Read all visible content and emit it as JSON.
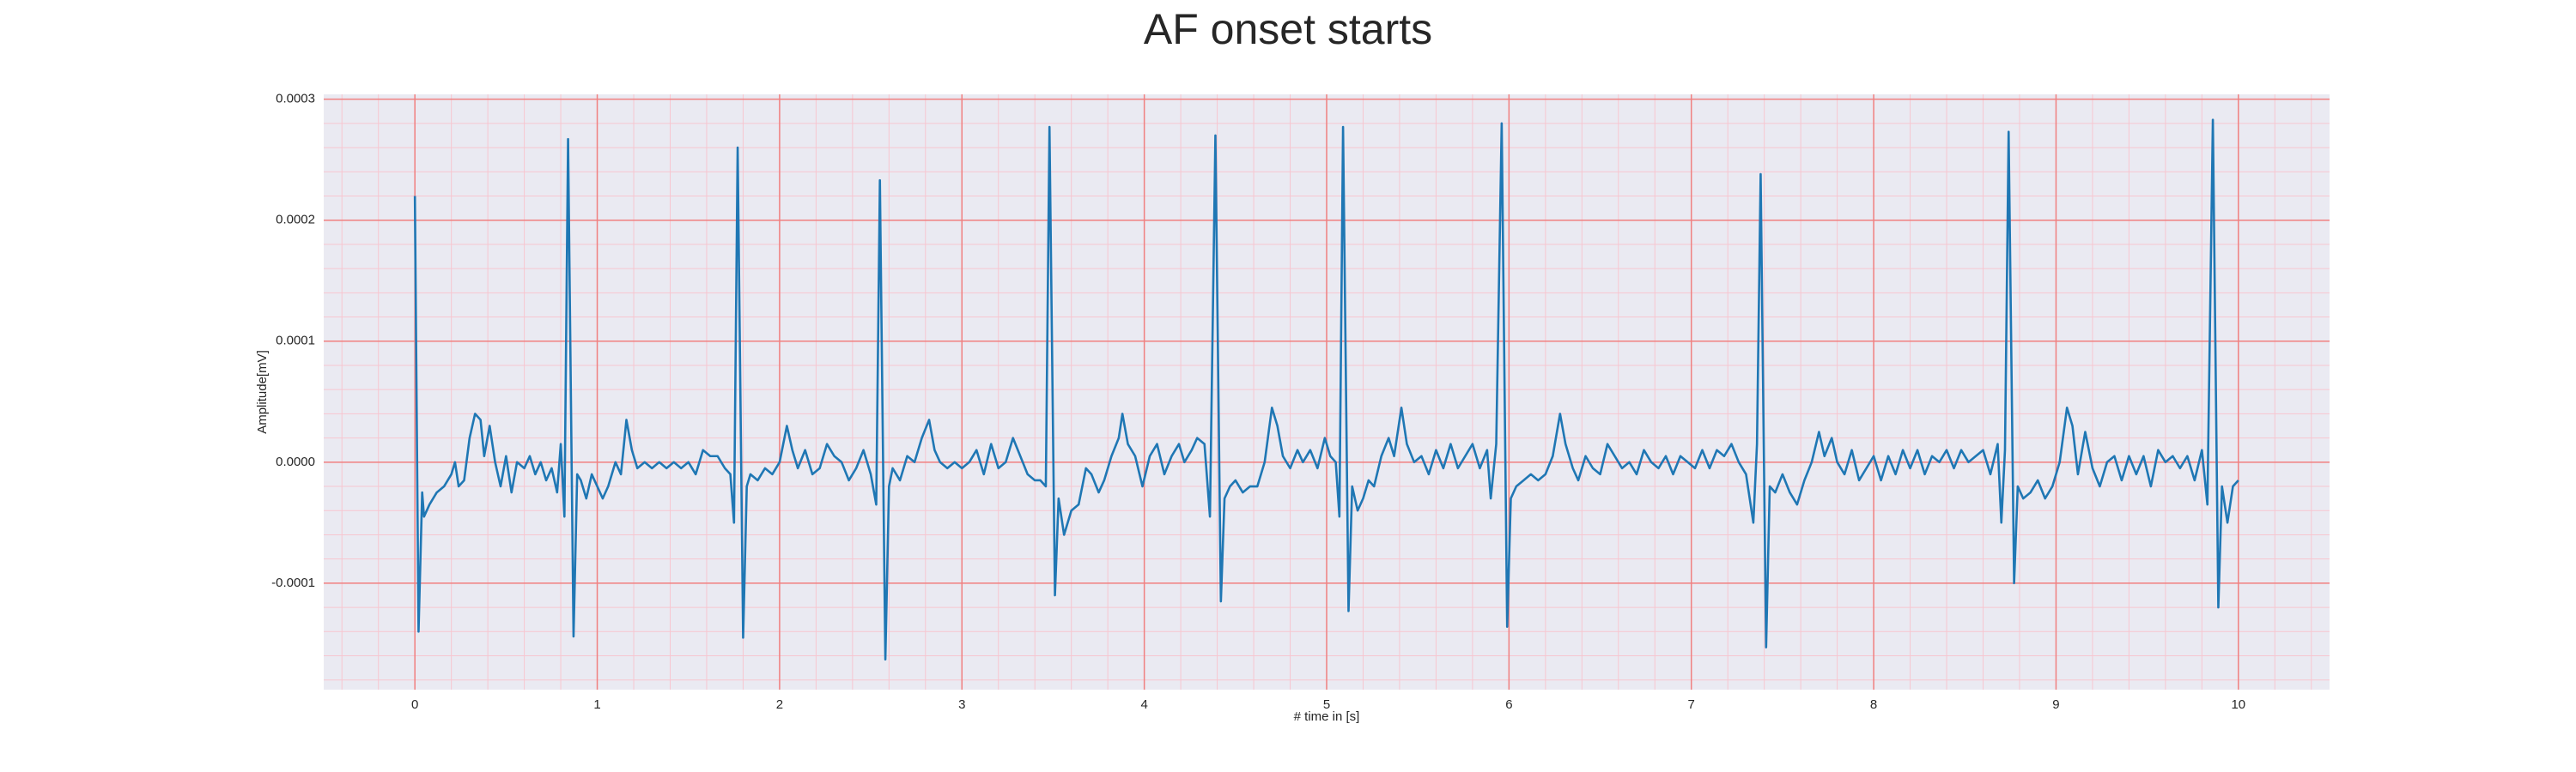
{
  "chart_data": {
    "type": "line",
    "title": "AF onset starts",
    "x_label": "# time in [s]",
    "y_label": "Amplitude[mV]",
    "xlim": [
      -0.5,
      10.5
    ],
    "ylim": [
      -0.000188,
      0.000304
    ],
    "xticks": [
      0,
      1,
      2,
      3,
      4,
      5,
      6,
      7,
      8,
      9,
      10
    ],
    "yticks": [
      -0.0001,
      {
        "value": 0,
        "label": "0.0000"
      },
      0.0001,
      0.0002,
      0.0003
    ],
    "grid": true,
    "minor_grid": true,
    "series": [
      {
        "color": "#1f77b4",
        "x": [
          0,
          0.02,
          0.04,
          0.05,
          0.08,
          0.12,
          0.16,
          0.2,
          0.22,
          0.24,
          0.27,
          0.3,
          0.33,
          0.36,
          0.38,
          0.41,
          0.44,
          0.47,
          0.5,
          0.53,
          0.56,
          0.6,
          0.63,
          0.66,
          0.69,
          0.72,
          0.75,
          0.78,
          0.8,
          0.82,
          0.84,
          0.87,
          0.89,
          0.91,
          0.94,
          0.97,
          1,
          1.03,
          1.06,
          1.1,
          1.13,
          1.16,
          1.19,
          1.22,
          1.26,
          1.3,
          1.34,
          1.38,
          1.42,
          1.46,
          1.5,
          1.54,
          1.58,
          1.62,
          1.66,
          1.7,
          1.73,
          1.75,
          1.77,
          1.8,
          1.82,
          1.84,
          1.88,
          1.92,
          1.96,
          2,
          2.04,
          2.07,
          2.1,
          2.14,
          2.18,
          2.22,
          2.26,
          2.3,
          2.34,
          2.38,
          2.42,
          2.46,
          2.5,
          2.53,
          2.55,
          2.58,
          2.6,
          2.62,
          2.66,
          2.7,
          2.74,
          2.78,
          2.82,
          2.85,
          2.88,
          2.92,
          2.96,
          3,
          3.04,
          3.08,
          3.12,
          3.16,
          3.2,
          3.24,
          3.28,
          3.32,
          3.36,
          3.4,
          3.43,
          3.46,
          3.48,
          3.51,
          3.53,
          3.56,
          3.6,
          3.64,
          3.68,
          3.71,
          3.75,
          3.78,
          3.82,
          3.86,
          3.88,
          3.91,
          3.95,
          3.99,
          4.03,
          4.07,
          4.11,
          4.15,
          4.19,
          4.22,
          4.26,
          4.29,
          4.33,
          4.36,
          4.39,
          4.42,
          4.44,
          4.47,
          4.5,
          4.54,
          4.58,
          4.62,
          4.66,
          4.7,
          4.73,
          4.76,
          4.8,
          4.84,
          4.87,
          4.91,
          4.95,
          4.99,
          5.02,
          5.05,
          5.07,
          5.09,
          5.12,
          5.14,
          5.17,
          5.2,
          5.23,
          5.26,
          5.3,
          5.34,
          5.37,
          5.41,
          5.44,
          5.48,
          5.52,
          5.56,
          5.6,
          5.64,
          5.68,
          5.72,
          5.76,
          5.8,
          5.84,
          5.88,
          5.9,
          5.93,
          5.96,
          5.99,
          6.01,
          6.04,
          6.08,
          6.12,
          6.16,
          6.2,
          6.24,
          6.28,
          6.31,
          6.35,
          6.38,
          6.42,
          6.46,
          6.5,
          6.54,
          6.58,
          6.62,
          6.66,
          6.7,
          6.74,
          6.78,
          6.82,
          6.86,
          6.9,
          6.94,
          6.98,
          7.02,
          7.06,
          7.1,
          7.14,
          7.18,
          7.22,
          7.26,
          7.3,
          7.34,
          7.36,
          7.38,
          7.41,
          7.43,
          7.46,
          7.5,
          7.54,
          7.58,
          7.62,
          7.66,
          7.7,
          7.73,
          7.77,
          7.8,
          7.84,
          7.88,
          7.92,
          7.96,
          8,
          8.04,
          8.08,
          8.12,
          8.16,
          8.2,
          8.24,
          8.28,
          8.32,
          8.36,
          8.4,
          8.44,
          8.48,
          8.52,
          8.56,
          8.6,
          8.64,
          8.68,
          8.7,
          8.72,
          8.74,
          8.77,
          8.79,
          8.82,
          8.86,
          8.9,
          8.94,
          8.98,
          9.02,
          9.06,
          9.09,
          9.12,
          9.16,
          9.2,
          9.24,
          9.28,
          9.32,
          9.36,
          9.4,
          9.44,
          9.48,
          9.52,
          9.56,
          9.6,
          9.64,
          9.68,
          9.72,
          9.76,
          9.8,
          9.83,
          9.86,
          9.89,
          9.91,
          9.94,
          9.97,
          10
        ],
        "values": [
          0.00022,
          -0.00014,
          -2.5e-05,
          -4.5e-05,
          -3.5e-05,
          -2.5e-05,
          -2e-05,
          -1e-05,
          0,
          -2e-05,
          -1.5e-05,
          2e-05,
          4e-05,
          3.5e-05,
          5e-06,
          3e-05,
          0,
          -2e-05,
          5e-06,
          -2.5e-05,
          0,
          -5e-06,
          5e-06,
          -1e-05,
          0,
          -1.5e-05,
          -5e-06,
          -2.5e-05,
          1.5e-05,
          -4.5e-05,
          0.000267,
          -0.000144,
          -1e-05,
          -1.5e-05,
          -3e-05,
          -1e-05,
          -2e-05,
          -3e-05,
          -2e-05,
          0,
          -1e-05,
          3.5e-05,
          1e-05,
          -5e-06,
          0,
          -5e-06,
          0,
          -5e-06,
          0,
          -5e-06,
          0,
          -1e-05,
          1e-05,
          5e-06,
          5e-06,
          -5e-06,
          -1e-05,
          -5e-05,
          0.00026,
          -0.000145,
          -2e-05,
          -1e-05,
          -1.5e-05,
          -5e-06,
          -1e-05,
          0,
          3e-05,
          1e-05,
          -5e-06,
          1e-05,
          -1e-05,
          -5e-06,
          1.5e-05,
          5e-06,
          0,
          -1.5e-05,
          -5e-06,
          1e-05,
          -1e-05,
          -3.5e-05,
          0.000233,
          -0.000163,
          -2e-05,
          -5e-06,
          -1.5e-05,
          5e-06,
          0,
          2e-05,
          3.5e-05,
          1e-05,
          0,
          -5e-06,
          0,
          -5e-06,
          0,
          1e-05,
          -1e-05,
          1.5e-05,
          -5e-06,
          0,
          2e-05,
          5e-06,
          -1e-05,
          -1.5e-05,
          -1.5e-05,
          -2e-05,
          0.000277,
          -0.00011,
          -3e-05,
          -6e-05,
          -4e-05,
          -3.5e-05,
          -5e-06,
          -1e-05,
          -2.5e-05,
          -1.5e-05,
          5e-06,
          2e-05,
          4e-05,
          1.5e-05,
          5e-06,
          -2e-05,
          5e-06,
          1.5e-05,
          -1e-05,
          5e-06,
          1.5e-05,
          0,
          1e-05,
          2e-05,
          1.5e-05,
          -4.5e-05,
          0.00027,
          -0.000115,
          -3e-05,
          -2e-05,
          -1.5e-05,
          -2.5e-05,
          -2e-05,
          -2e-05,
          0,
          4.5e-05,
          3e-05,
          5e-06,
          -5e-06,
          1e-05,
          0,
          1e-05,
          -5e-06,
          2e-05,
          5e-06,
          0,
          -4.5e-05,
          0.000277,
          -0.000123,
          -2e-05,
          -4e-05,
          -3e-05,
          -1.5e-05,
          -2e-05,
          5e-06,
          2e-05,
          5e-06,
          4.5e-05,
          1.5e-05,
          0,
          5e-06,
          -1e-05,
          1e-05,
          -5e-06,
          1.5e-05,
          -5e-06,
          5e-06,
          1.5e-05,
          -5e-06,
          1e-05,
          -3e-05,
          1.5e-05,
          0.00028,
          -0.000136,
          -3e-05,
          -2e-05,
          -1.5e-05,
          -1e-05,
          -1.5e-05,
          -1e-05,
          5e-06,
          4e-05,
          1.5e-05,
          -5e-06,
          -1.5e-05,
          5e-06,
          -5e-06,
          -1e-05,
          1.5e-05,
          5e-06,
          -5e-06,
          0,
          -1e-05,
          1e-05,
          0,
          -5e-06,
          5e-06,
          -1e-05,
          5e-06,
          0,
          -5e-06,
          1e-05,
          -5e-06,
          1e-05,
          5e-06,
          1.5e-05,
          0,
          -1e-05,
          -5e-05,
          1.5e-05,
          0.000238,
          -0.000153,
          -2e-05,
          -2.5e-05,
          -1e-05,
          -2.5e-05,
          -3.5e-05,
          -1.5e-05,
          0,
          2.5e-05,
          5e-06,
          2e-05,
          0,
          -1e-05,
          1e-05,
          -1.5e-05,
          -5e-06,
          5e-06,
          -1.5e-05,
          5e-06,
          -1e-05,
          1e-05,
          -5e-06,
          1e-05,
          -1e-05,
          5e-06,
          0,
          1e-05,
          -5e-06,
          1e-05,
          0,
          5e-06,
          1e-05,
          -1e-05,
          1.5e-05,
          -5e-05,
          1e-05,
          0.000273,
          -0.0001,
          -2e-05,
          -3e-05,
          -2.5e-05,
          -1.5e-05,
          -3e-05,
          -2e-05,
          0,
          4.5e-05,
          3e-05,
          -1e-05,
          2.5e-05,
          -5e-06,
          -2e-05,
          0,
          5e-06,
          -1.5e-05,
          5e-06,
          -1e-05,
          5e-06,
          -2e-05,
          1e-05,
          0,
          5e-06,
          -5e-06,
          5e-06,
          -1.5e-05,
          1e-05,
          -3.5e-05,
          0.000283,
          -0.00012,
          -2e-05,
          -5e-05,
          -2e-05,
          -1.5e-05
        ]
      }
    ]
  }
}
